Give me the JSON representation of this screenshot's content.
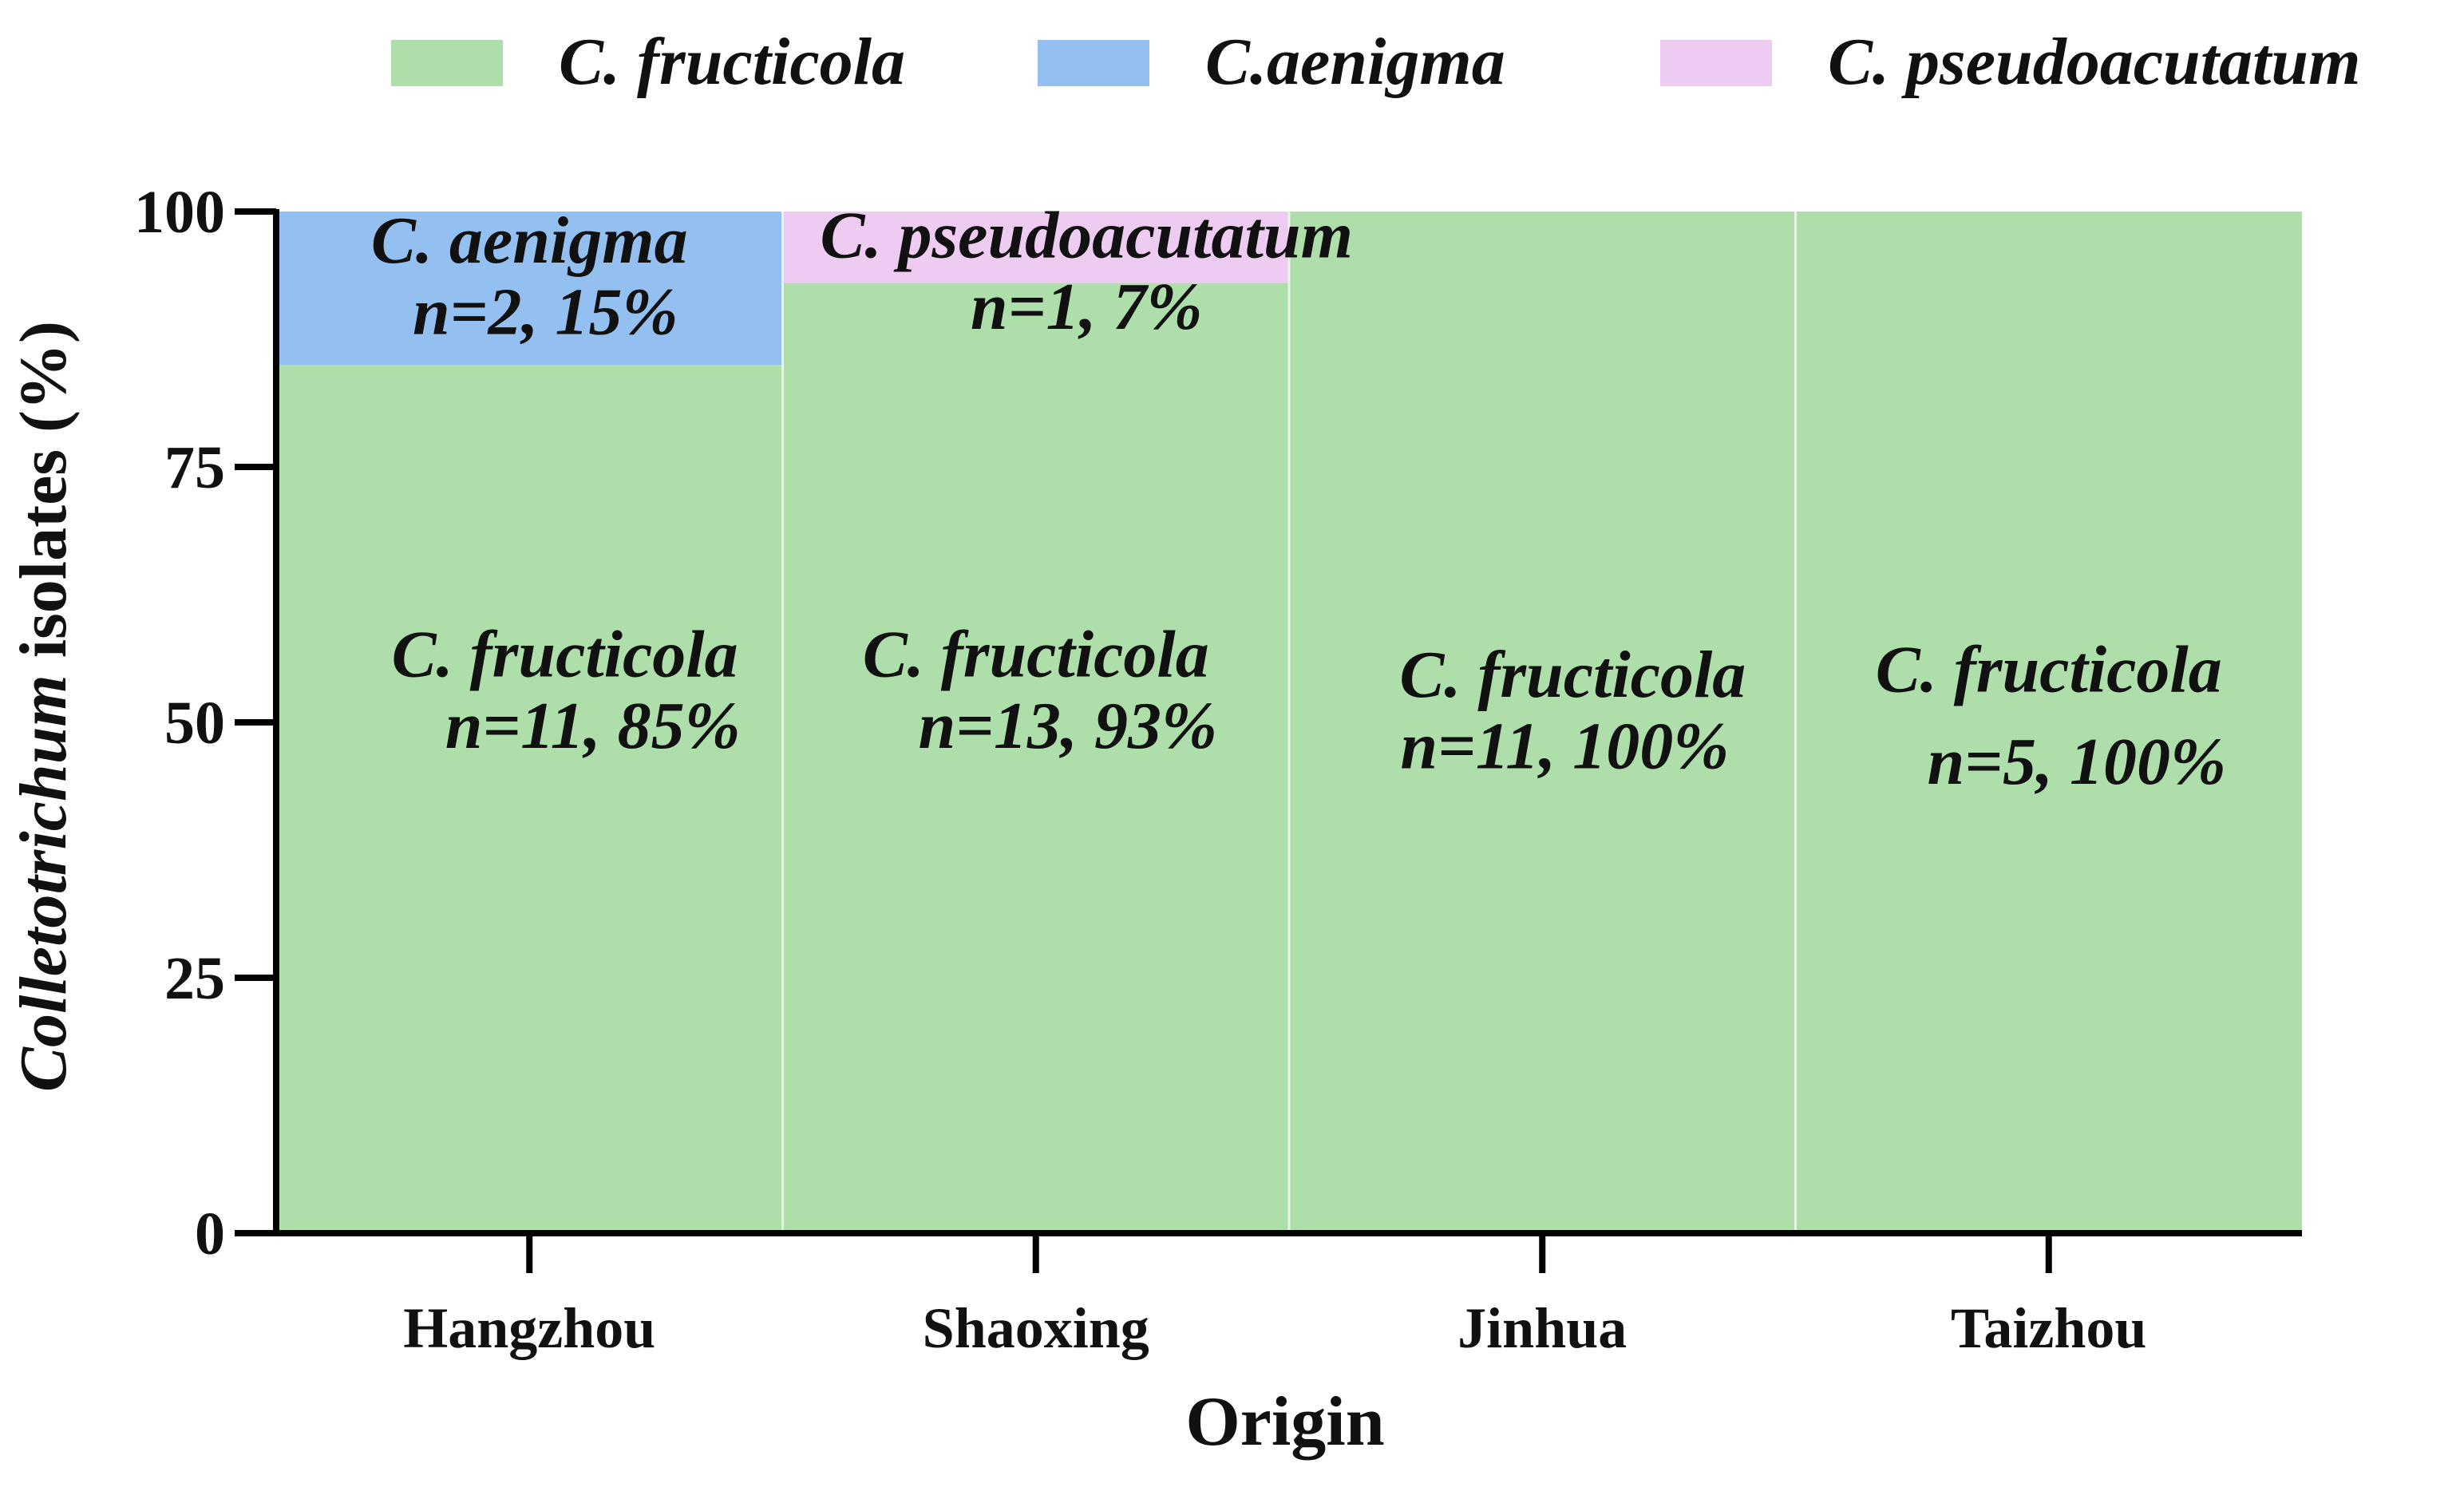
{
  "chart_data": {
    "type": "bar",
    "stacked": true,
    "title": "",
    "xlabel": "Origin",
    "ylabel": {
      "italic_part": "Colletotrichum",
      "rest": " isolates (%)"
    },
    "ylim": [
      0,
      100
    ],
    "yticks": [
      "0",
      "25",
      "50",
      "75",
      "100"
    ],
    "categories": [
      "Hangzhou",
      "Shaoxing",
      "Jinhua",
      "Taizhou"
    ],
    "series": [
      {
        "name": "C. fructicola",
        "values": [
          85,
          93,
          100,
          100
        ],
        "counts": [
          11,
          13,
          11,
          5
        ],
        "color": "#aedeaa"
      },
      {
        "name": "C.aenigma",
        "values": [
          15,
          0,
          0,
          0
        ],
        "counts": [
          2,
          0,
          0,
          0
        ],
        "color": "#94c0f1"
      },
      {
        "name": "C. pseudoacutatum",
        "values": [
          0,
          7,
          0,
          0
        ],
        "counts": [
          0,
          1,
          0,
          0
        ],
        "color": "#eecbf1"
      }
    ],
    "legend": {
      "position": "top",
      "entries": [
        "C. fructicola",
        "C.aenigma",
        "C. pseudoacutatum"
      ]
    },
    "annotations": [
      {
        "category": "Hangzhou",
        "series": "C.aenigma",
        "lines": [
          "C. aenigma",
          "n=2, 15%"
        ]
      },
      {
        "category": "Shaoxing",
        "series": "C. pseudoacutatum",
        "lines": [
          "C. pseudoacutatum",
          "n=1, 7%"
        ]
      },
      {
        "category": "Hangzhou",
        "series": "C. fructicola",
        "lines": [
          "C. fructicola",
          "n=11, 85%"
        ]
      },
      {
        "category": "Shaoxing",
        "series": "C. fructicola",
        "lines": [
          "C. fructicola",
          "n=13, 93%"
        ]
      },
      {
        "category": "Jinhua",
        "series": "C. fructicola",
        "lines": [
          "C. fructicola",
          "n=11, 100%"
        ]
      },
      {
        "category": "Taizhou",
        "series": "C. fructicola",
        "lines": [
          "C. fructicola",
          "n=5, 100%"
        ]
      }
    ]
  }
}
